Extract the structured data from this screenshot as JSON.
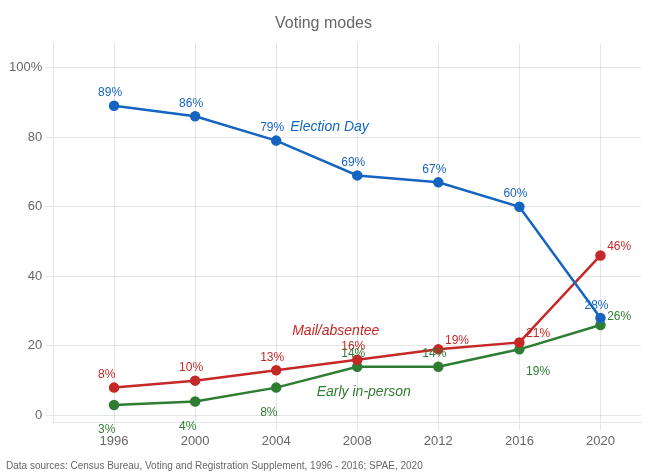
{
  "chart_data": {
    "type": "line",
    "title": "Voting modes",
    "footnote": "Data sources: Census Bureau, Voting and Registration Supplement, 1996 - 2016; SPAE, 2020",
    "x": [
      1996,
      2000,
      2004,
      2008,
      2012,
      2016,
      2020
    ],
    "xlim": [
      1993,
      2022
    ],
    "xticks": [
      1996,
      2000,
      2004,
      2008,
      2012,
      2016,
      2020
    ],
    "ylim": [
      -2,
      107
    ],
    "yticks": [
      0,
      20,
      40,
      60,
      80,
      {
        "value": 100,
        "label": "100%"
      }
    ],
    "grid": true,
    "data_labels": true,
    "series": [
      {
        "name": "Election Day",
        "color": "#1565C0",
        "marker": "circle",
        "values": [
          89,
          86,
          79,
          69,
          67,
          60,
          28
        ],
        "value_labels": [
          "89%",
          "86%",
          "79%",
          "69%",
          "67%",
          "60%",
          "28%"
        ]
      },
      {
        "name": "Mail/absentee",
        "color": "#C62828",
        "marker": "circle",
        "values": [
          8,
          10,
          13,
          16,
          19,
          21,
          46
        ],
        "value_labels": [
          "8%",
          "10%",
          "13%",
          "16%",
          "19%",
          "21%",
          "46%"
        ]
      },
      {
        "name": "Early in-person",
        "color": "#2E7D32",
        "marker": "circle",
        "values": [
          3,
          4,
          8,
          14,
          14,
          19,
          26
        ],
        "value_labels": [
          "3%",
          "4%",
          "8%",
          "14%",
          "14%",
          "19%",
          "26%"
        ]
      }
    ]
  }
}
